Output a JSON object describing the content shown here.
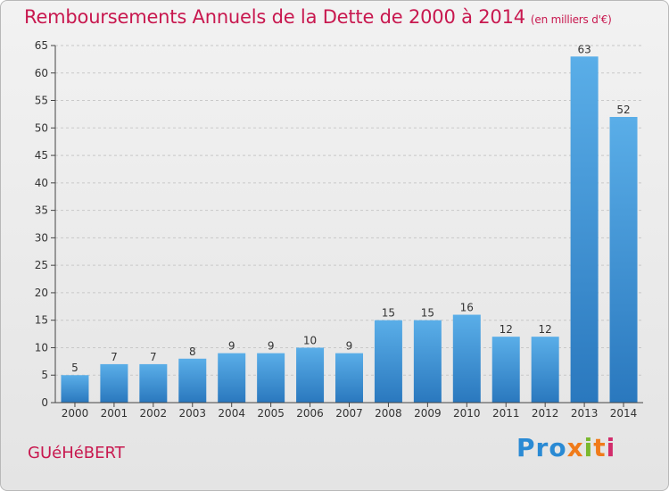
{
  "title": "Remboursements Annuels de la Dette de 2000 à 2014",
  "subtitle": "(en milliers d'€)",
  "commune": "GUéHéBERT",
  "brand": {
    "p1": "Pro",
    "p2": "x",
    "p3": "i",
    "p4": "t",
    "p5": "i"
  },
  "colors": {
    "accent": "#c8184f",
    "bar": "#3d97d9",
    "bar_dark": "#2a78be",
    "grid": "#c8c8c8"
  },
  "chart_data": {
    "type": "bar",
    "title": "Remboursements Annuels de la Dette de 2000 à 2014",
    "subtitle": "(en milliers d'€)",
    "xlabel": "",
    "ylabel": "",
    "ylim": [
      0,
      65
    ],
    "yticks": [
      0,
      5,
      10,
      15,
      20,
      25,
      30,
      35,
      40,
      45,
      50,
      55,
      60,
      65
    ],
    "grid": true,
    "categories": [
      "2000",
      "2001",
      "2002",
      "2003",
      "2004",
      "2005",
      "2006",
      "2007",
      "2008",
      "2009",
      "2010",
      "2011",
      "2012",
      "2013",
      "2014"
    ],
    "values": [
      5,
      7,
      7,
      8,
      9,
      9,
      10,
      9,
      15,
      15,
      16,
      12,
      12,
      63,
      52
    ]
  }
}
